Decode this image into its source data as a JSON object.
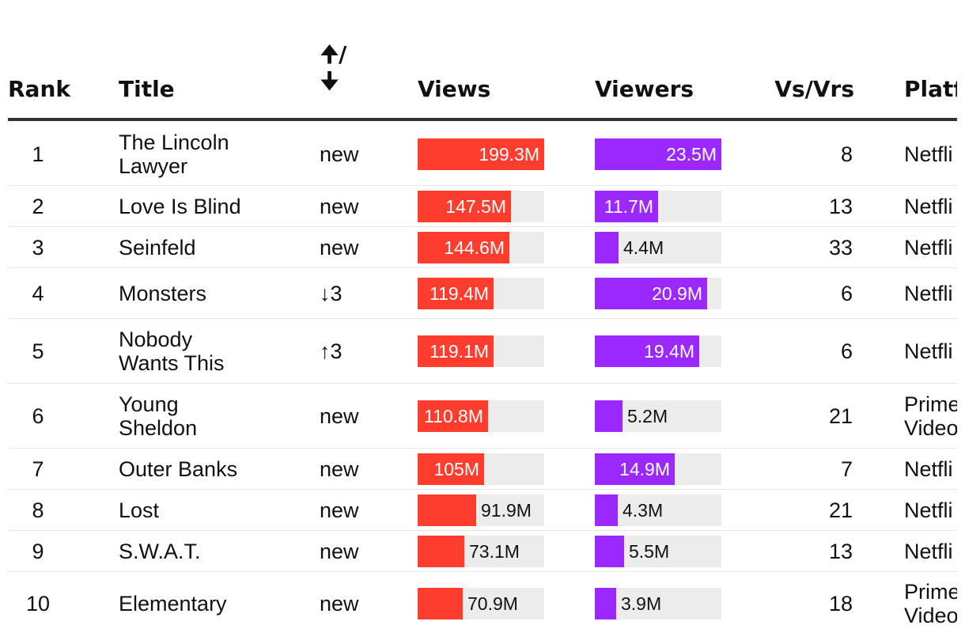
{
  "headers": {
    "rank": "Rank",
    "title": "Title",
    "change_up": "🠉/",
    "change_down": "🠋",
    "views": "Views",
    "viewers": "Viewers",
    "ratio": "Vs/Vrs",
    "platform": "Platf"
  },
  "colors": {
    "views_bar": "#ff3d2e",
    "viewers_bar": "#9b29ff",
    "track": "#ececec",
    "header_rule": "#333333"
  },
  "rows": [
    {
      "rank": "1",
      "title": [
        "The Lincoln",
        "Lawyer"
      ],
      "change": "new",
      "views_label": "199.3M",
      "viewers_label": "23.5M",
      "ratio": "8",
      "platform": [
        "Netfli"
      ]
    },
    {
      "rank": "2",
      "title": [
        "Love Is Blind"
      ],
      "change": "new",
      "views_label": "147.5M",
      "viewers_label": "11.7M",
      "ratio": "13",
      "platform": [
        "Netfli"
      ]
    },
    {
      "rank": "3",
      "title": [
        "Seinfeld"
      ],
      "change": "new",
      "views_label": "144.6M",
      "viewers_label": "4.4M",
      "ratio": "33",
      "platform": [
        "Netfli"
      ]
    },
    {
      "rank": "4",
      "title": [
        "Monsters"
      ],
      "change": "↓3",
      "views_label": "119.4M",
      "viewers_label": "20.9M",
      "ratio": "6",
      "platform": [
        "Netfli"
      ]
    },
    {
      "rank": "5",
      "title": [
        "Nobody",
        "Wants This"
      ],
      "change": "↑3",
      "views_label": "119.1M",
      "viewers_label": "19.4M",
      "ratio": "6",
      "platform": [
        "Netfli"
      ]
    },
    {
      "rank": "6",
      "title": [
        "Young",
        "Sheldon"
      ],
      "change": "new",
      "views_label": "110.8M",
      "viewers_label": "5.2M",
      "ratio": "21",
      "platform": [
        "Prime",
        "Video"
      ]
    },
    {
      "rank": "7",
      "title": [
        "Outer Banks"
      ],
      "change": "new",
      "views_label": "105M",
      "viewers_label": "14.9M",
      "ratio": "7",
      "platform": [
        "Netfli"
      ]
    },
    {
      "rank": "8",
      "title": [
        "Lost"
      ],
      "change": "new",
      "views_label": "91.9M",
      "viewers_label": "4.3M",
      "ratio": "21",
      "platform": [
        "Netfli"
      ]
    },
    {
      "rank": "9",
      "title": [
        "S.W.A.T."
      ],
      "change": "new",
      "views_label": "73.1M",
      "viewers_label": "5.5M",
      "ratio": "13",
      "platform": [
        "Netfli"
      ]
    },
    {
      "rank": "10",
      "title": [
        "Elementary"
      ],
      "change": "new",
      "views_label": "70.9M",
      "viewers_label": "3.9M",
      "ratio": "18",
      "platform": [
        "Prime",
        "Video"
      ]
    }
  ],
  "chart_data": {
    "type": "table",
    "columns": [
      "Rank",
      "Title",
      "🠉/🠋",
      "Views",
      "Viewers",
      "Vs/Vrs",
      "Platf"
    ],
    "series": [
      {
        "name": "Views",
        "unit": "M",
        "values": [
          199.3,
          147.5,
          144.6,
          119.4,
          119.1,
          110.8,
          105,
          91.9,
          73.1,
          70.9
        ],
        "max": 199.3
      },
      {
        "name": "Viewers",
        "unit": "M",
        "values": [
          23.5,
          11.7,
          4.4,
          20.9,
          19.4,
          5.2,
          14.9,
          4.3,
          5.5,
          3.9
        ],
        "max": 23.5
      }
    ]
  }
}
